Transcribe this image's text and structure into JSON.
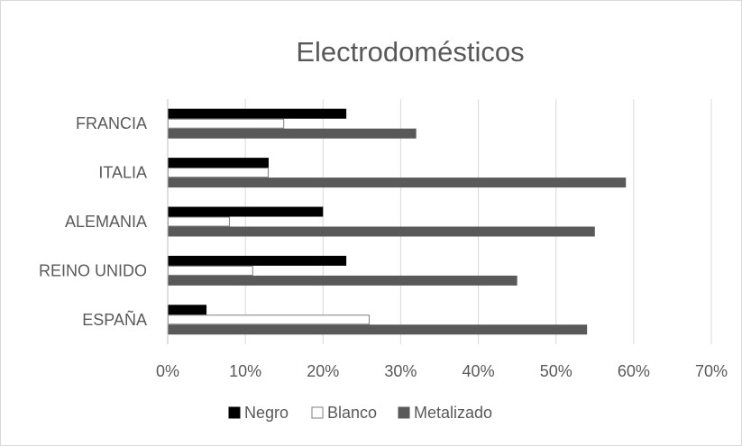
{
  "chart_data": {
    "type": "bar",
    "orientation": "horizontal",
    "title": "Electrodomésticos",
    "categories": [
      "FRANCIA",
      "ITALIA",
      "ALEMANIA",
      "REINO UNIDO",
      "ESPAÑA"
    ],
    "series": [
      {
        "name": "Negro",
        "values": [
          23,
          13,
          20,
          23,
          5
        ],
        "color": "#000000",
        "border": "#000000"
      },
      {
        "name": "Blanco",
        "values": [
          15,
          13,
          8,
          11,
          26
        ],
        "color": "#ffffff",
        "border": "#7f7f7f"
      },
      {
        "name": "Metalizado",
        "values": [
          32,
          59,
          55,
          45,
          54
        ],
        "color": "#595959",
        "border": "#595959"
      }
    ],
    "xlim": [
      0,
      70
    ],
    "xticks": [
      "0%",
      "10%",
      "20%",
      "30%",
      "40%",
      "50%",
      "60%",
      "70%"
    ],
    "grid": true,
    "legend_position": "bottom",
    "gridline_color": "#d9d9d9",
    "axis_color": "#bfbfbf"
  }
}
